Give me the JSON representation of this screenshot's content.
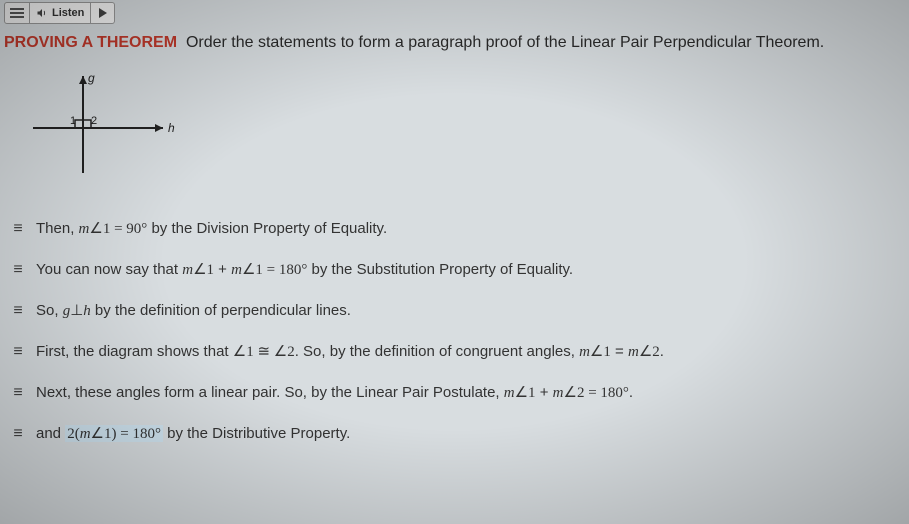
{
  "topbar": {
    "listen_label": "Listen"
  },
  "heading": {
    "lead": "PROVING A THEOREM",
    "rest": "Order the statements to form a paragraph proof of the Linear Pair Perpendicular Theorem."
  },
  "diagram": {
    "label_g": "g",
    "label_h": "h",
    "label_1": "1",
    "label_2": "2"
  },
  "statements": [
    {
      "html": "Then, <span class='math'>m</span><span class='mathup'>∠1 = 90°</span> by the Division Property of Equality."
    },
    {
      "html": "You can now say that <span class='math'>m</span><span class='mathup'>∠1</span> + <span class='math'>m</span><span class='mathup'>∠1 = 180°</span> by the Substitution Property of Equality."
    },
    {
      "html": "So, <span class='math'>g</span><span class='mathup'>⊥</span><span class='math'>h</span> by the definition of perpendicular lines."
    },
    {
      "html": "First, the diagram shows that <span class='mathup'>∠1 ≅ ∠2</span>. So, by the definition of congruent angles, <span class='math'>m</span><span class='mathup'>∠1</span> = <span class='math'>m</span><span class='mathup'>∠2</span>."
    },
    {
      "html": "Next, these angles form a linear pair. So, by the Linear Pair Postulate, <span class='math'>m</span><span class='mathup'>∠1</span> + <span class='math'>m</span><span class='mathup'>∠2 = 180°</span>."
    },
    {
      "html": "and <span class='hl'><span class='mathup'>2(</span><span class='math'>m</span><span class='mathup'>∠1) = 180°</span></span> by the Distributive Property."
    }
  ],
  "colors": {
    "bg": "#d8dde0",
    "heading_lead": "#c0392b",
    "text": "#2a2a2a",
    "highlight": "#cfe3ef"
  }
}
